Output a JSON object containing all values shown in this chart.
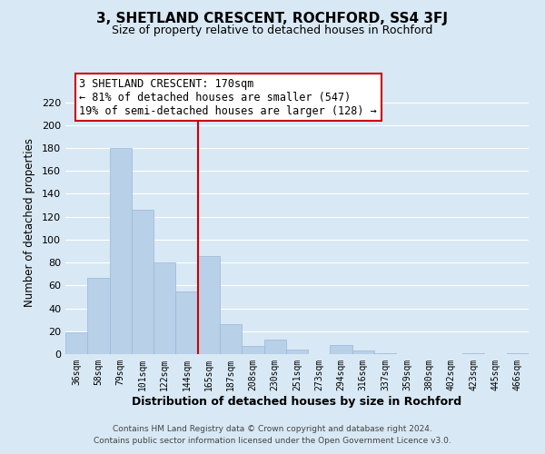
{
  "title": "3, SHETLAND CRESCENT, ROCHFORD, SS4 3FJ",
  "subtitle": "Size of property relative to detached houses in Rochford",
  "xlabel": "Distribution of detached houses by size in Rochford",
  "ylabel": "Number of detached properties",
  "bar_color": "#b8d0e8",
  "bar_edge_color": "#9ab8d8",
  "highlight_line_color": "#cc0000",
  "categories": [
    "36sqm",
    "58sqm",
    "79sqm",
    "101sqm",
    "122sqm",
    "144sqm",
    "165sqm",
    "187sqm",
    "208sqm",
    "230sqm",
    "251sqm",
    "273sqm",
    "294sqm",
    "316sqm",
    "337sqm",
    "359sqm",
    "380sqm",
    "402sqm",
    "423sqm",
    "445sqm",
    "466sqm"
  ],
  "values": [
    19,
    67,
    180,
    126,
    80,
    55,
    86,
    26,
    7,
    13,
    4,
    0,
    8,
    3,
    1,
    0,
    0,
    0,
    1,
    0,
    1
  ],
  "ylim": [
    0,
    230
  ],
  "yticks": [
    0,
    20,
    40,
    60,
    80,
    100,
    120,
    140,
    160,
    180,
    200,
    220
  ],
  "annotation_text": "3 SHETLAND CRESCENT: 170sqm\n← 81% of detached houses are smaller (547)\n19% of semi-detached houses are larger (128) →",
  "annotation_box_color": "#ffffff",
  "annotation_box_edge_color": "#cc0000",
  "footer_line1": "Contains HM Land Registry data © Crown copyright and database right 2024.",
  "footer_line2": "Contains public sector information licensed under the Open Government Licence v3.0.",
  "background_color": "#d8e8f4",
  "plot_bg_color": "#d8e8f4",
  "grid_color": "#ffffff",
  "highlight_bar_index": 6
}
